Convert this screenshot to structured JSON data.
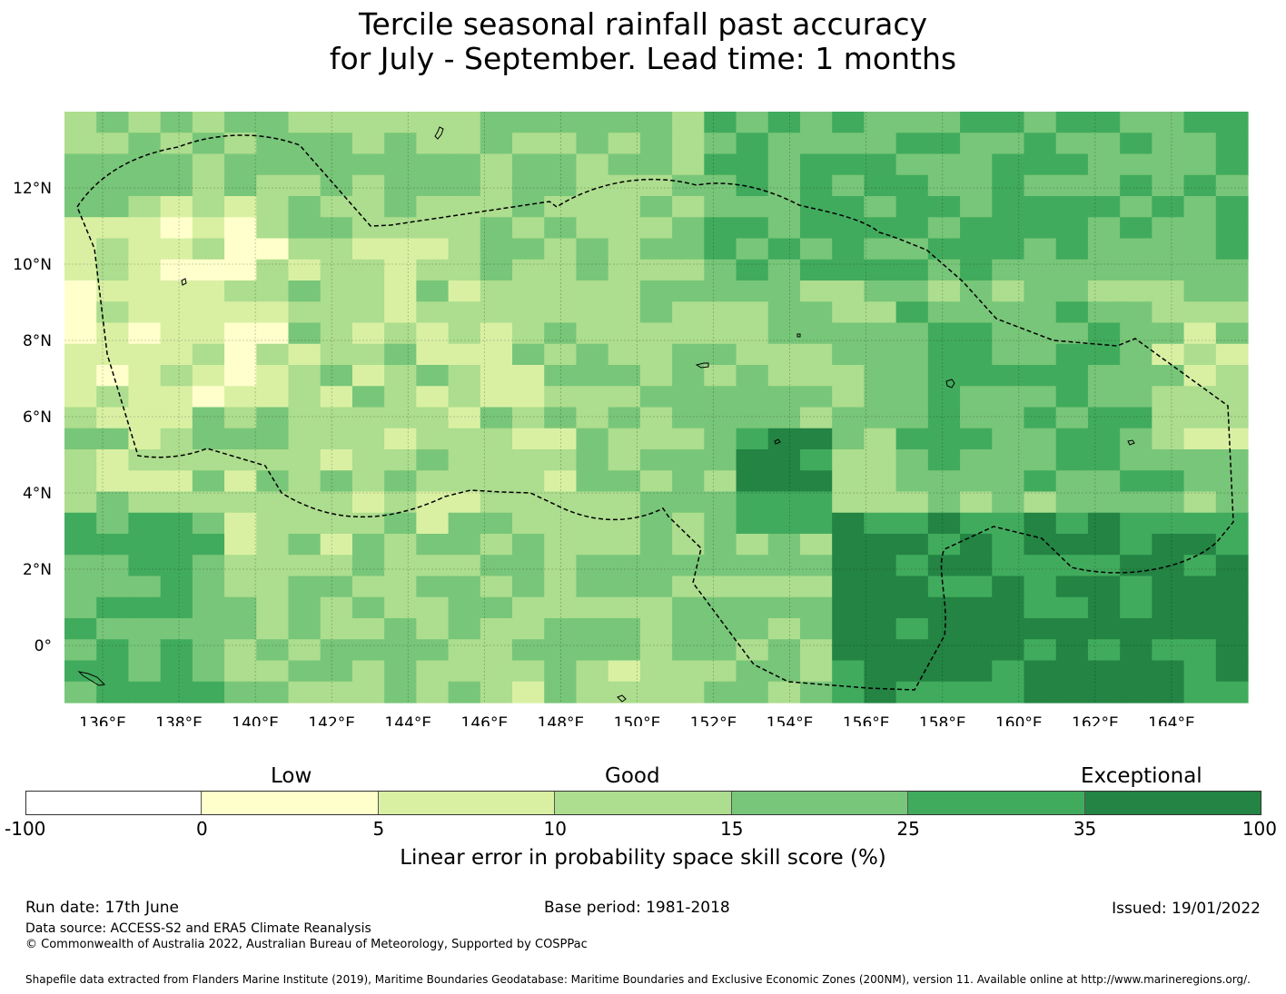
{
  "title": {
    "line1": "Tercile seasonal rainfall past accuracy",
    "line2": "for July - September. Lead time: 1 months"
  },
  "map": {
    "lon_range": [
      135,
      166
    ],
    "lat_range": [
      -1.5,
      14
    ],
    "lon_ticks": [
      "136°E",
      "138°E",
      "140°E",
      "142°E",
      "144°E",
      "146°E",
      "148°E",
      "150°E",
      "152°E",
      "154°E",
      "156°E",
      "158°E",
      "160°E",
      "162°E",
      "164°E"
    ],
    "lat_ticks": [
      "0°",
      "2°N",
      "4°N",
      "6°N",
      "8°N",
      "10°N",
      "12°N"
    ],
    "grid": true,
    "eez_boundary": "dashed black line"
  },
  "colorbar": {
    "categories": [
      "Low",
      "Good",
      "Exceptional"
    ],
    "boundaries": [
      "-100",
      "0",
      "5",
      "10",
      "15",
      "25",
      "35",
      "100"
    ],
    "colors": [
      "#ffffff",
      "#ffffcc",
      "#d9f0a3",
      "#addd8e",
      "#78c679",
      "#41ab5d",
      "#238443"
    ],
    "label": "Linear error in probability space skill score (%)"
  },
  "footer": {
    "run_date": "Run date: 17th June",
    "base_period": "Base period: 1981-2018",
    "issued": "Issued: 19/01/2022",
    "data_source": "Data source: ACCESS-S2 and ERA5 Climate Reanalysis",
    "copyright": "© Commonwealth of Australia 2022, Australian Bureau of Meteorology, Supported by COSPPac",
    "shapefile": "Shapefile data extracted from Flanders Marine Institute (2019), Maritime Boundaries Geodatabase: Maritime Boundaries and Exclusive Economic Zones (200NM), version 11. Available online at http://www.marineregions.org/."
  }
}
